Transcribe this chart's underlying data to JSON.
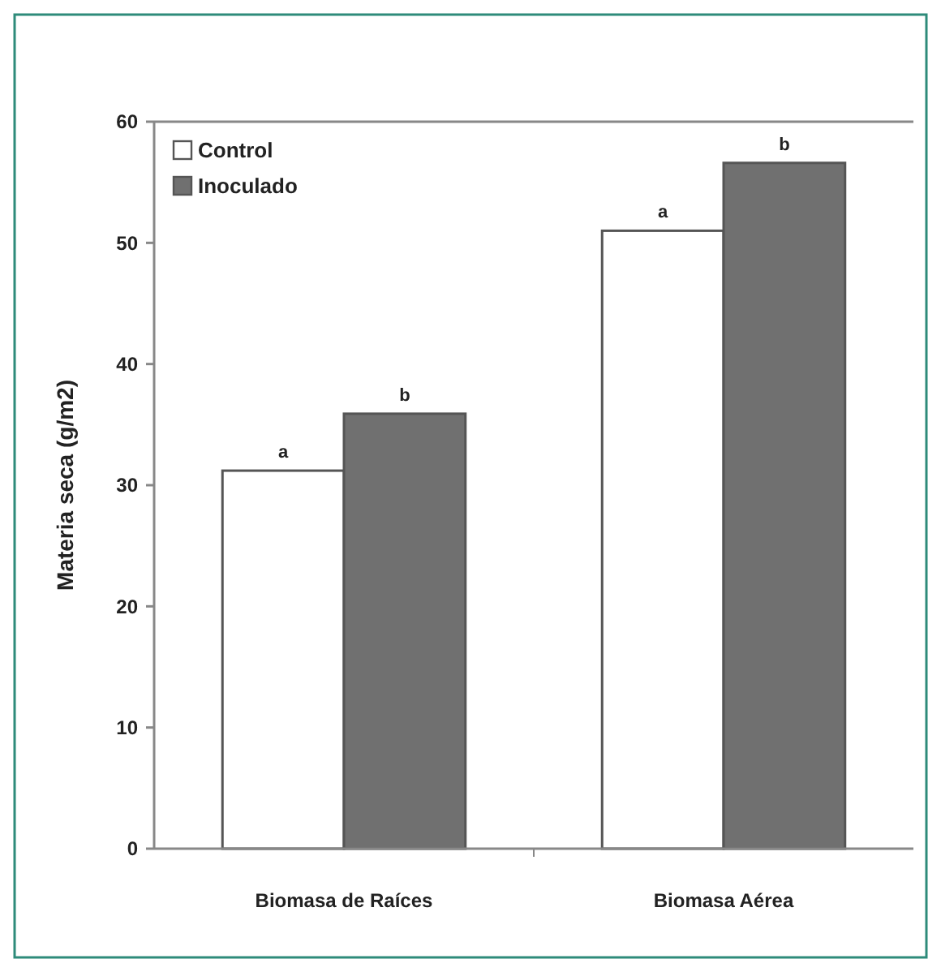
{
  "chart_data": {
    "type": "bar",
    "ylabel": "Materia seca (g/m2)",
    "categories": [
      "Biomasa de Raíces",
      "Biomasa Aérea"
    ],
    "series": [
      {
        "name": "Control",
        "color": "#ffffff",
        "values": [
          31.2,
          51.0
        ]
      },
      {
        "name": "Inoculado",
        "color": "#707070",
        "values": [
          35.9,
          56.6
        ]
      }
    ],
    "ylim": [
      0,
      60
    ],
    "yticks": [
      0,
      10,
      20,
      30,
      40,
      50,
      60
    ],
    "grid": false,
    "legend": "top left",
    "annotations": [
      "a",
      "b",
      "a",
      "b"
    ]
  }
}
